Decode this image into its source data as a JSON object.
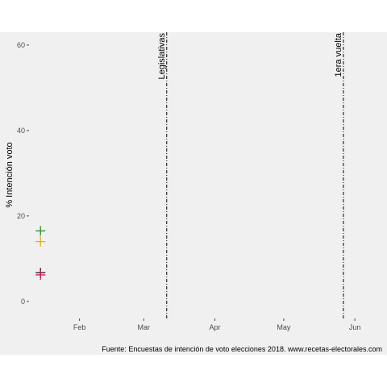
{
  "chart_data": {
    "type": "scatter",
    "title": "",
    "xlabel": "",
    "ylabel": "% Intención voto",
    "caption": "Fuente: Encuestas de intención de voto elecciones 2018. www.recetas-electorales.com",
    "x_axis": {
      "type": "date",
      "range": [
        "2018-01-10",
        "2018-06-15"
      ],
      "ticks": [
        {
          "date": "2018-02-01",
          "label": "Feb"
        },
        {
          "date": "2018-03-01",
          "label": "Mar"
        },
        {
          "date": "2018-04-01",
          "label": "Apr"
        },
        {
          "date": "2018-05-01",
          "label": "May"
        },
        {
          "date": "2018-06-01",
          "label": "Jun"
        }
      ]
    },
    "y_axis": {
      "range": [
        -4,
        63
      ],
      "ticks": [
        0,
        20,
        40,
        60
      ]
    },
    "grid": false,
    "marker": "plus",
    "points": [
      {
        "date": "2018-01-15",
        "value": 16.5,
        "color": "#2e8b2e"
      },
      {
        "date": "2018-01-15",
        "value": 14.0,
        "color": "#e5b000"
      },
      {
        "date": "2018-01-15",
        "value": 6.7,
        "color": "#1a1a1a"
      },
      {
        "date": "2018-01-15",
        "value": 6.2,
        "color": "#d4145a"
      }
    ],
    "events": [
      {
        "date": "2018-03-11",
        "label": "Legislativas"
      },
      {
        "date": "2018-05-27",
        "label": "1era vuelta"
      }
    ],
    "colors": {
      "panel_background": "#f0f0f0",
      "event_line": "#000000",
      "tick_text": "#4d4d4d"
    }
  }
}
